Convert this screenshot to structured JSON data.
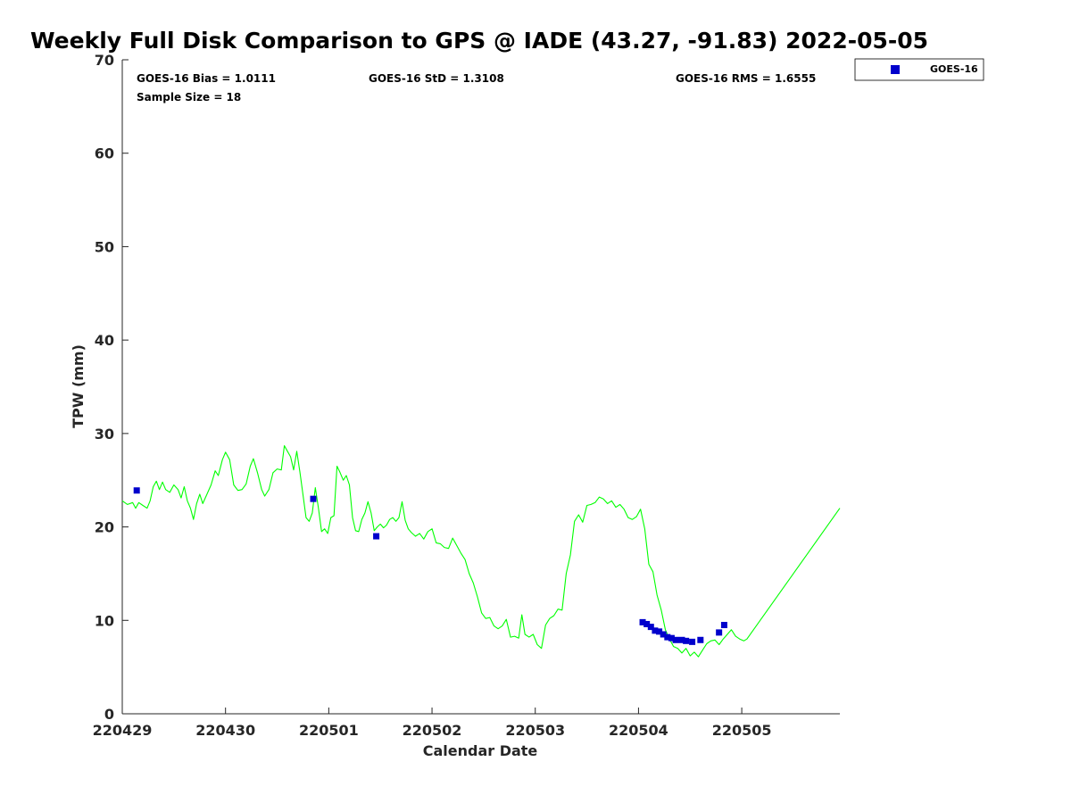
{
  "chart_data": {
    "type": "scatter",
    "title": "Weekly Full Disk Comparison to GPS @ IADE (43.27, -91.83) 2022-05-05",
    "xlabel": "Calendar Date",
    "ylabel": "TPW (mm)",
    "ylim": [
      0,
      70
    ],
    "xlim": [
      0,
      6.95
    ],
    "yticks": [
      0,
      10,
      20,
      30,
      40,
      50,
      60,
      70
    ],
    "xticks": [
      {
        "day": 0,
        "label": "220429"
      },
      {
        "day": 1,
        "label": "220430"
      },
      {
        "day": 2,
        "label": "220501"
      },
      {
        "day": 3,
        "label": "220502"
      },
      {
        "day": 4,
        "label": "220503"
      },
      {
        "day": 5,
        "label": "220504"
      },
      {
        "day": 6,
        "label": "220505"
      }
    ],
    "grid": false,
    "legend_position": "top-right",
    "stats": {
      "bias": "GOES-16 Bias = 1.0111",
      "std": "GOES-16 StD = 1.3108",
      "rms": "GOES-16 RMS = 1.6555",
      "sample": "Sample Size = 18"
    },
    "series": [
      {
        "name": "GOES-16",
        "kind": "scatter",
        "color": "#0000cc",
        "marker": "square",
        "points": [
          [
            0.14,
            23.9
          ],
          [
            1.85,
            23.0
          ],
          [
            2.46,
            19.0
          ],
          [
            5.04,
            9.8
          ],
          [
            5.08,
            9.6
          ],
          [
            5.12,
            9.3
          ],
          [
            5.16,
            8.9
          ],
          [
            5.2,
            8.8
          ],
          [
            5.24,
            8.5
          ],
          [
            5.28,
            8.2
          ],
          [
            5.32,
            8.1
          ],
          [
            5.36,
            7.9
          ],
          [
            5.42,
            7.9
          ],
          [
            5.46,
            7.8
          ],
          [
            5.52,
            7.7
          ],
          [
            5.6,
            7.9
          ],
          [
            5.78,
            8.7
          ],
          [
            5.83,
            9.5
          ]
        ]
      },
      {
        "kind": "line",
        "color": "#00ff00",
        "points": [
          [
            0.0,
            22.8
          ],
          [
            0.05,
            22.4
          ],
          [
            0.1,
            22.6
          ],
          [
            0.13,
            22.0
          ],
          [
            0.16,
            22.6
          ],
          [
            0.2,
            22.3
          ],
          [
            0.24,
            22.0
          ],
          [
            0.27,
            22.8
          ],
          [
            0.3,
            24.3
          ],
          [
            0.33,
            24.9
          ],
          [
            0.36,
            24.0
          ],
          [
            0.39,
            24.8
          ],
          [
            0.42,
            24.0
          ],
          [
            0.46,
            23.7
          ],
          [
            0.5,
            24.5
          ],
          [
            0.54,
            24.0
          ],
          [
            0.57,
            23.1
          ],
          [
            0.6,
            24.3
          ],
          [
            0.63,
            22.8
          ],
          [
            0.66,
            22.0
          ],
          [
            0.69,
            20.8
          ],
          [
            0.72,
            22.5
          ],
          [
            0.75,
            23.5
          ],
          [
            0.78,
            22.5
          ],
          [
            0.82,
            23.5
          ],
          [
            0.86,
            24.5
          ],
          [
            0.9,
            26.0
          ],
          [
            0.93,
            25.5
          ],
          [
            0.97,
            27.2
          ],
          [
            1.0,
            28.0
          ],
          [
            1.04,
            27.2
          ],
          [
            1.08,
            24.5
          ],
          [
            1.12,
            23.9
          ],
          [
            1.16,
            24.0
          ],
          [
            1.2,
            24.6
          ],
          [
            1.24,
            26.5
          ],
          [
            1.27,
            27.3
          ],
          [
            1.31,
            25.8
          ],
          [
            1.35,
            24.0
          ],
          [
            1.38,
            23.3
          ],
          [
            1.42,
            24.0
          ],
          [
            1.46,
            25.8
          ],
          [
            1.5,
            26.2
          ],
          [
            1.54,
            26.1
          ],
          [
            1.57,
            28.7
          ],
          [
            1.6,
            28.1
          ],
          [
            1.63,
            27.5
          ],
          [
            1.66,
            26.1
          ],
          [
            1.69,
            28.1
          ],
          [
            1.72,
            25.9
          ],
          [
            1.75,
            23.5
          ],
          [
            1.78,
            21.0
          ],
          [
            1.81,
            20.6
          ],
          [
            1.84,
            21.5
          ],
          [
            1.87,
            24.2
          ],
          [
            1.9,
            22.0
          ],
          [
            1.93,
            19.5
          ],
          [
            1.96,
            19.8
          ],
          [
            1.99,
            19.3
          ],
          [
            2.02,
            21.0
          ],
          [
            2.05,
            21.2
          ],
          [
            2.08,
            26.5
          ],
          [
            2.11,
            25.8
          ],
          [
            2.14,
            25.0
          ],
          [
            2.17,
            25.5
          ],
          [
            2.2,
            24.5
          ],
          [
            2.23,
            21.0
          ],
          [
            2.26,
            19.6
          ],
          [
            2.29,
            19.5
          ],
          [
            2.32,
            20.8
          ],
          [
            2.35,
            21.5
          ],
          [
            2.38,
            22.7
          ],
          [
            2.41,
            21.5
          ],
          [
            2.44,
            19.6
          ],
          [
            2.47,
            20.0
          ],
          [
            2.5,
            20.3
          ],
          [
            2.53,
            19.9
          ],
          [
            2.56,
            20.2
          ],
          [
            2.59,
            20.8
          ],
          [
            2.62,
            21.0
          ],
          [
            2.65,
            20.6
          ],
          [
            2.68,
            21.0
          ],
          [
            2.71,
            22.7
          ],
          [
            2.74,
            20.7
          ],
          [
            2.77,
            19.8
          ],
          [
            2.8,
            19.4
          ],
          [
            2.84,
            19.0
          ],
          [
            2.88,
            19.3
          ],
          [
            2.92,
            18.7
          ],
          [
            2.96,
            19.5
          ],
          [
            3.0,
            19.8
          ],
          [
            3.04,
            18.3
          ],
          [
            3.08,
            18.2
          ],
          [
            3.12,
            17.8
          ],
          [
            3.16,
            17.7
          ],
          [
            3.2,
            18.8
          ],
          [
            3.24,
            18.0
          ],
          [
            3.28,
            17.2
          ],
          [
            3.32,
            16.5
          ],
          [
            3.36,
            15.0
          ],
          [
            3.4,
            14.0
          ],
          [
            3.44,
            12.5
          ],
          [
            3.48,
            10.8
          ],
          [
            3.52,
            10.2
          ],
          [
            3.56,
            10.3
          ],
          [
            3.6,
            9.4
          ],
          [
            3.64,
            9.1
          ],
          [
            3.68,
            9.4
          ],
          [
            3.72,
            10.1
          ],
          [
            3.76,
            8.2
          ],
          [
            3.8,
            8.3
          ],
          [
            3.84,
            8.1
          ],
          [
            3.87,
            10.6
          ],
          [
            3.9,
            8.5
          ],
          [
            3.94,
            8.2
          ],
          [
            3.98,
            8.5
          ],
          [
            4.02,
            7.4
          ],
          [
            4.06,
            7.0
          ],
          [
            4.1,
            9.5
          ],
          [
            4.14,
            10.2
          ],
          [
            4.18,
            10.5
          ],
          [
            4.22,
            11.2
          ],
          [
            4.26,
            11.1
          ],
          [
            4.3,
            15.0
          ],
          [
            4.34,
            17.0
          ],
          [
            4.38,
            20.6
          ],
          [
            4.42,
            21.3
          ],
          [
            4.46,
            20.5
          ],
          [
            4.5,
            22.3
          ],
          [
            4.54,
            22.4
          ],
          [
            4.58,
            22.6
          ],
          [
            4.62,
            23.2
          ],
          [
            4.66,
            23.0
          ],
          [
            4.7,
            22.5
          ],
          [
            4.74,
            22.8
          ],
          [
            4.78,
            22.1
          ],
          [
            4.82,
            22.4
          ],
          [
            4.86,
            21.9
          ],
          [
            4.9,
            21.0
          ],
          [
            4.94,
            20.8
          ],
          [
            4.98,
            21.1
          ],
          [
            5.02,
            21.9
          ],
          [
            5.06,
            19.8
          ],
          [
            5.1,
            16.0
          ],
          [
            5.14,
            15.2
          ],
          [
            5.18,
            12.7
          ],
          [
            5.22,
            11.1
          ],
          [
            5.26,
            9.0
          ],
          [
            5.3,
            8.0
          ],
          [
            5.34,
            7.2
          ],
          [
            5.38,
            7.0
          ],
          [
            5.42,
            6.5
          ],
          [
            5.46,
            7.0
          ],
          [
            5.5,
            6.2
          ],
          [
            5.54,
            6.6
          ],
          [
            5.58,
            6.1
          ],
          [
            5.62,
            6.8
          ],
          [
            5.66,
            7.5
          ],
          [
            5.7,
            7.8
          ],
          [
            5.74,
            7.9
          ],
          [
            5.78,
            7.4
          ],
          [
            5.82,
            8.0
          ],
          [
            5.86,
            8.5
          ],
          [
            5.9,
            9.0
          ],
          [
            5.94,
            8.3
          ],
          [
            5.98,
            8.0
          ],
          [
            6.02,
            7.8
          ],
          [
            6.05,
            8.0
          ],
          [
            6.95,
            22.0
          ]
        ]
      }
    ]
  }
}
